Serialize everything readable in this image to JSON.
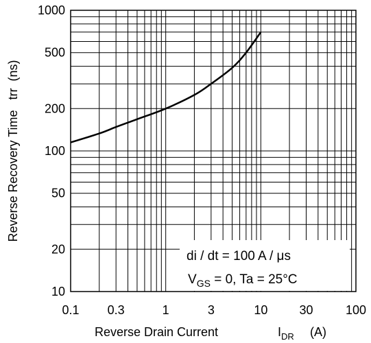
{
  "chart_data": {
    "type": "line",
    "title": "",
    "xlabel": "Reverse Drain Current",
    "xlabel_symbol": "I",
    "xlabel_sub": "DR",
    "xlabel_unit": "(A)",
    "ylabel": "Reverse Recovery Time   trr  (ns)",
    "x_scale": "log",
    "y_scale": "log",
    "xlim": [
      0.1,
      100
    ],
    "ylim": [
      10,
      1000
    ],
    "x_tick_labels": [
      "0.1",
      "0.3",
      "1",
      "3",
      "10",
      "30",
      "100"
    ],
    "y_tick_labels": [
      "10",
      "20",
      "50",
      "100",
      "200",
      "500",
      "1000"
    ],
    "grid": true,
    "series": [
      {
        "x": [
          0.1,
          0.2,
          0.3,
          0.5,
          1,
          2,
          3,
          5,
          7,
          10
        ],
        "y": [
          115,
          133,
          148,
          168,
          200,
          250,
          300,
          390,
          500,
          700
        ]
      }
    ],
    "annotations": [
      "di / dt = 100 A / μs",
      "V",
      "GS",
      " = 0, Ta = 25°C"
    ]
  }
}
